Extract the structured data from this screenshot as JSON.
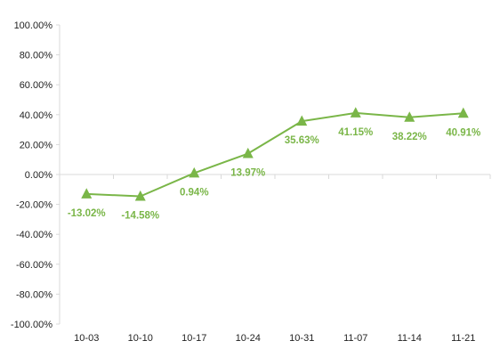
{
  "chart_data": {
    "type": "line",
    "title": "",
    "xlabel": "",
    "ylabel": "",
    "categories": [
      "10-03",
      "10-10",
      "10-17",
      "10-24",
      "10-31",
      "11-07",
      "11-14",
      "11-21"
    ],
    "series": [
      {
        "values": [
          -13.02,
          -14.58,
          0.94,
          13.97,
          35.63,
          41.15,
          38.22,
          40.91
        ],
        "labels": [
          "-13.02%",
          "-14.58%",
          "0.94%",
          "13.97%",
          "35.63%",
          "41.15%",
          "38.22%",
          "40.91%"
        ],
        "color": "#7ab648",
        "marker": "triangle"
      }
    ],
    "ylim": [
      -100,
      100
    ],
    "yticks": [
      100,
      80,
      60,
      40,
      20,
      0,
      -20,
      -40,
      -60,
      -80,
      -100
    ],
    "ytick_labels": [
      "100.00%",
      "80.00%",
      "60.00%",
      "40.00%",
      "20.00%",
      "0.00%",
      "-20.00%",
      "-40.00%",
      "-60.00%",
      "-80.00%",
      "-100.00%"
    ],
    "grid": false,
    "legend": "none"
  }
}
